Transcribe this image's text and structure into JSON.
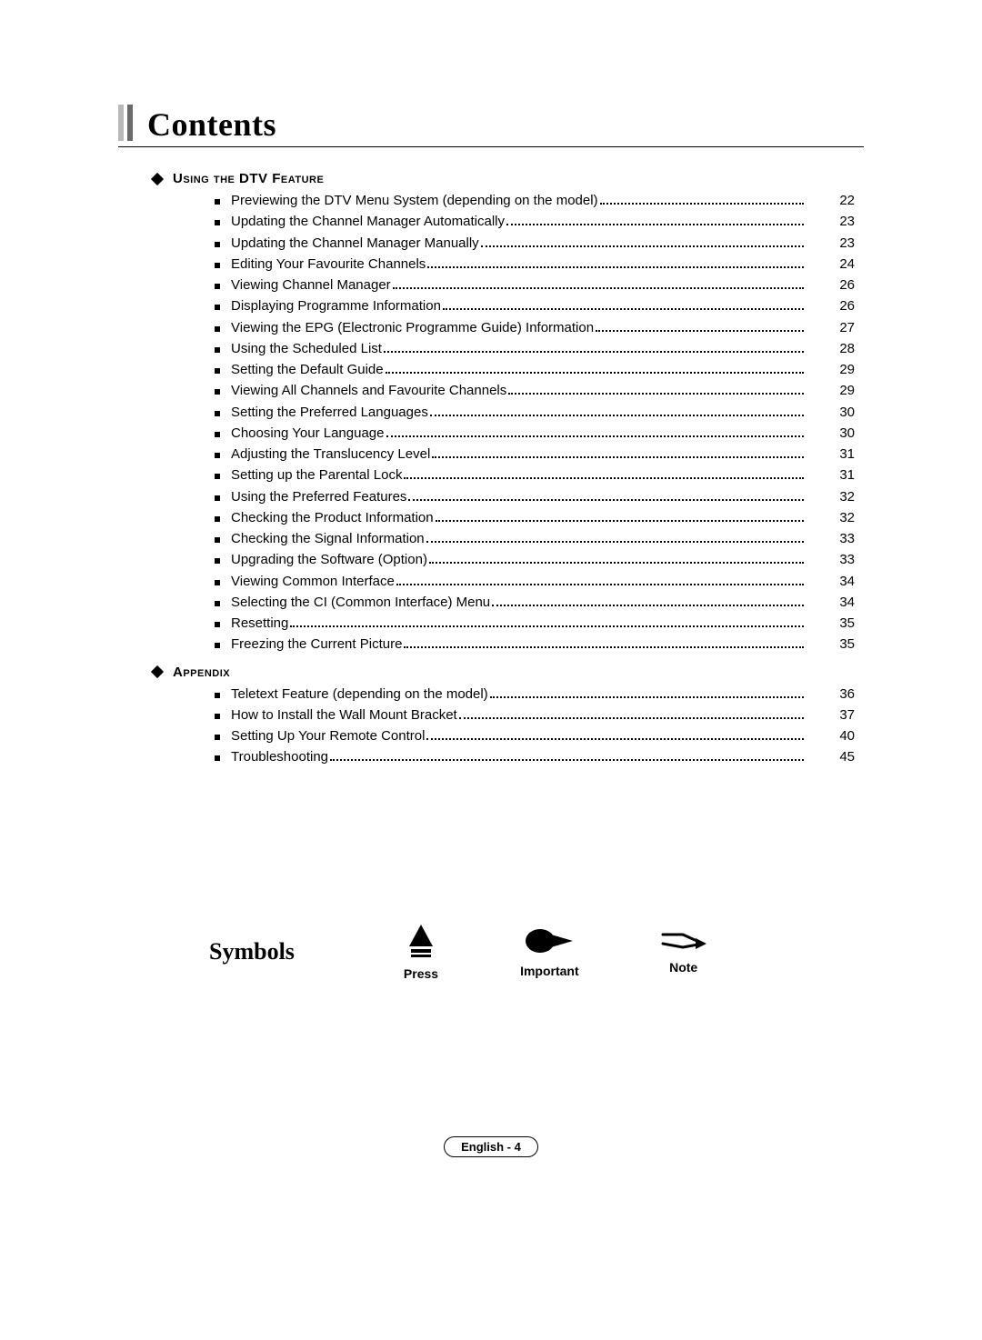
{
  "page_title": "Contents",
  "sections": [
    {
      "heading": "Using the DTV Feature",
      "items": [
        {
          "label": "Previewing the DTV Menu System (depending on the model)",
          "page": "22"
        },
        {
          "label": "Updating the Channel Manager Automatically",
          "page": "23"
        },
        {
          "label": "Updating the Channel Manager Manually",
          "page": "23"
        },
        {
          "label": "Editing Your Favourite Channels",
          "page": "24"
        },
        {
          "label": "Viewing Channel Manager",
          "page": "26"
        },
        {
          "label": "Displaying Programme Information",
          "page": "26"
        },
        {
          "label": "Viewing the EPG (Electronic Programme Guide) Information",
          "page": "27"
        },
        {
          "label": "Using the Scheduled List",
          "page": "28"
        },
        {
          "label": "Setting the Default Guide",
          "page": "29"
        },
        {
          "label": "Viewing All Channels and Favourite Channels",
          "page": "29"
        },
        {
          "label": "Setting the Preferred Languages",
          "page": "30"
        },
        {
          "label": "Choosing Your Language",
          "page": "30"
        },
        {
          "label": "Adjusting the Translucency Level",
          "page": "31"
        },
        {
          "label": "Setting up the Parental Lock",
          "page": "31"
        },
        {
          "label": "Using the Preferred Features",
          "page": "32"
        },
        {
          "label": "Checking the Product Information",
          "page": "32"
        },
        {
          "label": "Checking the Signal Information",
          "page": "33"
        },
        {
          "label": "Upgrading the Software (Option)",
          "page": "33"
        },
        {
          "label": "Viewing Common Interface",
          "page": "34"
        },
        {
          "label": "Selecting the CI (Common Interface) Menu",
          "page": "34"
        },
        {
          "label": "Resetting",
          "page": "35"
        },
        {
          "label": "Freezing the Current Picture",
          "page": "35"
        }
      ]
    },
    {
      "heading": "Appendix",
      "items": [
        {
          "label": "Teletext Feature (depending on the model)",
          "page": "36"
        },
        {
          "label": "How to Install the Wall Mount Bracket",
          "page": "37"
        },
        {
          "label": "Setting Up Your Remote Control",
          "page": "40"
        },
        {
          "label": "Troubleshooting",
          "page": "45"
        }
      ]
    }
  ],
  "symbols": {
    "title": "Symbols",
    "press": "Press",
    "important": "Important",
    "note": "Note"
  },
  "footer": "English - 4"
}
